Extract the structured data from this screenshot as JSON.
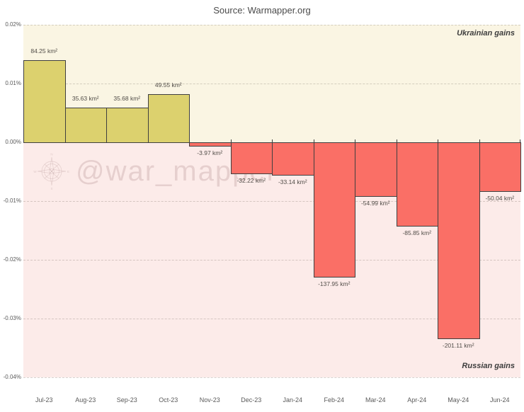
{
  "title": "Source: Warmapper.org",
  "watermark": {
    "text": "@war_mapper",
    "icon": "compass-rose-icon"
  },
  "regions": {
    "positive_label": "Ukrainian gains",
    "negative_label": "Russian gains"
  },
  "colors": {
    "positive_bar": "#dcd16e",
    "negative_bar": "#fa6f66",
    "bar_border": "#3f3f3f",
    "positive_background": "#faf5e3",
    "negative_background": "#fcebe9",
    "axis_text": "#5a5a5a"
  },
  "y_axis": {
    "ticks": [
      "0.02%",
      "0.01%",
      "0.00%",
      "-0.01%",
      "-0.02%",
      "-0.03%",
      "-0.04%"
    ],
    "max_percent": 0.02,
    "min_percent": -0.04,
    "step_percent": 0.01
  },
  "chart_data": {
    "type": "bar",
    "title": "Source: Warmapper.org",
    "categories": [
      "Jul-23",
      "Aug-23",
      "Sep-23",
      "Oct-23",
      "Nov-23",
      "Dec-23",
      "Jan-24",
      "Feb-24",
      "Mar-24",
      "Apr-24",
      "May-24",
      "Jun-24"
    ],
    "values": [
      84.25,
      35.63,
      35.68,
      49.55,
      -3.97,
      -32.22,
      -33.14,
      -137.95,
      -54.99,
      -85.85,
      -201.11,
      -50.04
    ],
    "value_labels": [
      "84.25 km²",
      "35.63 km²",
      "35.68 km²",
      "49.55 km²",
      "-3.97 km²",
      "-32.22 km²",
      "-33.14 km²",
      "-137.95 km²",
      "-54.99 km²",
      "-85.85 km²",
      "-201.11 km²",
      "-50.04 km²"
    ],
    "unit": "km²",
    "xlabel": "",
    "ylabel": "",
    "y_axis_unit": "%",
    "ylim": [
      -0.04,
      0.02
    ],
    "grid": "horizontal-dashed",
    "legend": "none",
    "annotations": [
      "Ukrainian gains",
      "Russian gains"
    ]
  }
}
